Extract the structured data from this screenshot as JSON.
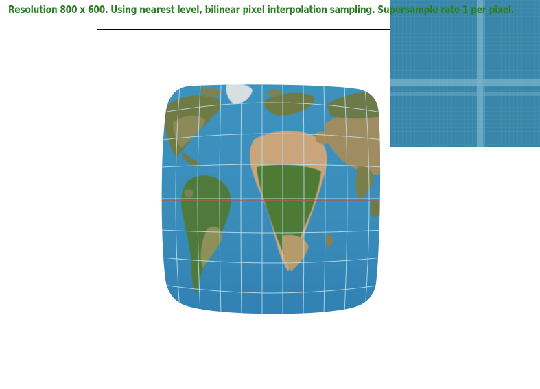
{
  "status": {
    "text": "Resolution 800 x 600. Using nearest level, bilinear pixel interpolation sampling. Supersample rate 1 per pixel."
  },
  "colors": {
    "status_text": "#2d7d28",
    "ocean": "#3b8db9",
    "zoom_base": "#3a86aa",
    "grid_line": "#bfe0ea",
    "equator": "#b55a4e"
  },
  "icons": {
    "map": "globe-texture",
    "zoom": "zoom-magnifier-view"
  }
}
